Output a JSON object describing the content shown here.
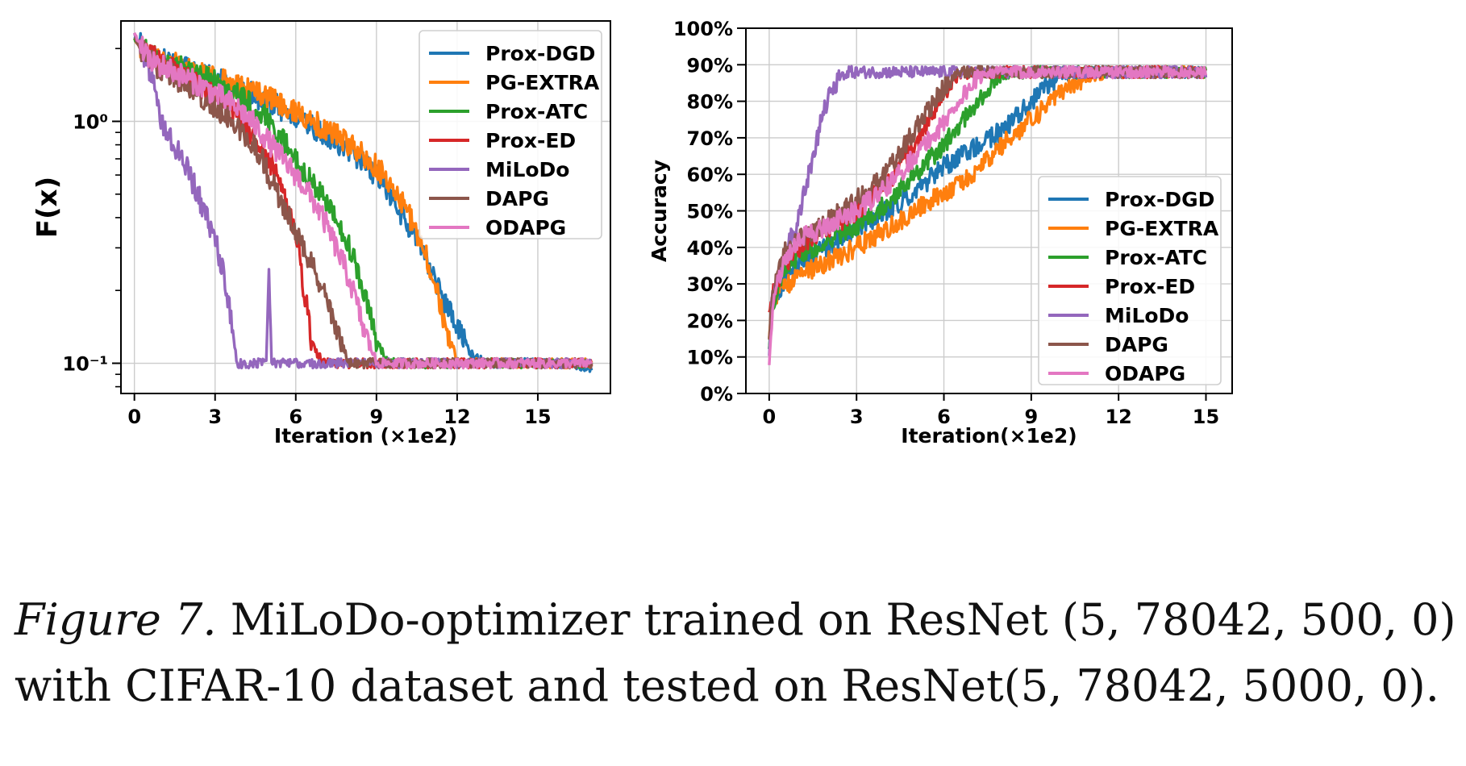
{
  "series_meta": [
    {
      "name": "Prox-DGD",
      "color": "#1f77b4"
    },
    {
      "name": "PG-EXTRA",
      "color": "#ff7f0e"
    },
    {
      "name": "Prox-ATC",
      "color": "#2ca02c"
    },
    {
      "name": "Prox-ED",
      "color": "#d62728"
    },
    {
      "name": "MiLoDo",
      "color": "#9467bd"
    },
    {
      "name": "DAPG",
      "color": "#8c564b"
    },
    {
      "name": "ODAPG",
      "color": "#e377c2"
    }
  ],
  "chart_data": [
    {
      "type": "line",
      "ylabel": "F(x)",
      "xlabel": "Iteration (×1e2)",
      "xlim": [
        -0.5,
        17.7
      ],
      "ylim": [
        0.075,
        2.6
      ],
      "yscale": "log",
      "xticks": [
        0,
        3,
        6,
        9,
        12,
        15
      ],
      "xtick_labels": [
        "0",
        "3",
        "6",
        "9",
        "12",
        "15"
      ],
      "yticks": [
        1,
        0.1
      ],
      "ytick_labels": [
        "10⁰",
        "10⁻¹"
      ],
      "grid": true,
      "legend": "top-right",
      "series": [
        {
          "name": "Prox-DGD",
          "x": [
            0,
            0.5,
            1,
            2,
            3,
            4,
            5,
            6,
            7,
            8,
            8.5,
            9,
            9.5,
            10,
            10.5,
            11,
            11.5,
            12,
            12.5,
            13,
            14,
            15,
            16,
            17
          ],
          "values": [
            2.2,
            1.9,
            1.8,
            1.65,
            1.5,
            1.35,
            1.2,
            1.05,
            0.9,
            0.75,
            0.68,
            0.6,
            0.5,
            0.4,
            0.32,
            0.25,
            0.18,
            0.14,
            0.11,
            0.1,
            0.1,
            0.1,
            0.1,
            0.095
          ]
        },
        {
          "name": "PG-EXTRA",
          "x": [
            0,
            0.5,
            1,
            2,
            3,
            4,
            5,
            6,
            7,
            8,
            9,
            9.5,
            10,
            10.5,
            11,
            11.5,
            12,
            13,
            14,
            15,
            16,
            17
          ],
          "values": [
            2.2,
            1.9,
            1.8,
            1.65,
            1.5,
            1.4,
            1.25,
            1.1,
            0.95,
            0.8,
            0.65,
            0.55,
            0.45,
            0.35,
            0.25,
            0.15,
            0.1,
            0.1,
            0.1,
            0.1,
            0.1,
            0.1
          ]
        },
        {
          "name": "Prox-ATC",
          "x": [
            0,
            0.5,
            1,
            2,
            3,
            4,
            5,
            5.5,
            6,
            6.5,
            7,
            7.5,
            8,
            8.5,
            9,
            9.5,
            10,
            12,
            14,
            16,
            17
          ],
          "values": [
            2.2,
            1.9,
            1.8,
            1.6,
            1.45,
            1.25,
            1.0,
            0.85,
            0.7,
            0.58,
            0.48,
            0.4,
            0.3,
            0.2,
            0.12,
            0.1,
            0.1,
            0.1,
            0.1,
            0.1,
            0.1
          ]
        },
        {
          "name": "Prox-ED",
          "x": [
            0,
            0.5,
            1,
            2,
            3,
            4,
            5,
            5.5,
            6,
            6.3,
            6.6,
            7,
            8,
            10,
            12,
            14,
            16,
            17
          ],
          "values": [
            2.2,
            1.9,
            1.75,
            1.5,
            1.25,
            1.0,
            0.7,
            0.5,
            0.35,
            0.2,
            0.12,
            0.1,
            0.1,
            0.1,
            0.1,
            0.1,
            0.1,
            0.1
          ]
        },
        {
          "name": "MiLoDo",
          "x": [
            0,
            0.5,
            1,
            1.5,
            2,
            2.5,
            3,
            3.5,
            3.8,
            4,
            4.5,
            4.9,
            5,
            5.1,
            5.5,
            6,
            8,
            10,
            12,
            14,
            16,
            17
          ],
          "values": [
            2.3,
            1.7,
            1.0,
            0.8,
            0.62,
            0.45,
            0.32,
            0.18,
            0.1,
            0.1,
            0.1,
            0.1,
            0.24,
            0.1,
            0.1,
            0.1,
            0.1,
            0.1,
            0.1,
            0.1,
            0.1,
            0.1
          ]
        },
        {
          "name": "DAPG",
          "x": [
            0,
            0.5,
            1,
            2,
            3,
            4,
            4.5,
            5,
            5.5,
            6,
            6.5,
            7,
            7.5,
            8,
            9,
            10,
            12,
            14,
            16,
            17
          ],
          "values": [
            2.2,
            1.8,
            1.65,
            1.4,
            1.15,
            0.9,
            0.78,
            0.6,
            0.45,
            0.35,
            0.27,
            0.2,
            0.14,
            0.1,
            0.1,
            0.1,
            0.1,
            0.1,
            0.1,
            0.1
          ]
        },
        {
          "name": "ODAPG",
          "x": [
            0,
            0.5,
            1,
            2,
            3,
            4,
            5,
            5.5,
            6,
            6.5,
            7,
            7.5,
            8,
            8.5,
            9,
            10,
            12,
            14,
            16,
            17
          ],
          "values": [
            2.3,
            1.85,
            1.7,
            1.5,
            1.3,
            1.1,
            0.82,
            0.7,
            0.6,
            0.5,
            0.4,
            0.3,
            0.22,
            0.14,
            0.1,
            0.1,
            0.1,
            0.1,
            0.1,
            0.1
          ]
        }
      ]
    },
    {
      "type": "line",
      "ylabel": "Accuracy",
      "xlabel": "Iteration(×1e2)",
      "xlim": [
        -0.8,
        15.9
      ],
      "ylim": [
        0,
        100
      ],
      "xticks": [
        0,
        3,
        6,
        9,
        12,
        15
      ],
      "xtick_labels": [
        "0",
        "3",
        "6",
        "9",
        "12",
        "15"
      ],
      "yticks": [
        0,
        10,
        20,
        30,
        40,
        50,
        60,
        70,
        80,
        90,
        100
      ],
      "ytick_labels": [
        "0%",
        "10%",
        "20%",
        "30%",
        "40%",
        "50%",
        "60%",
        "70%",
        "80%",
        "90%",
        "100%"
      ],
      "grid": true,
      "legend": "lower-right",
      "series": [
        {
          "name": "Prox-DGD",
          "x": [
            0,
            0.1,
            0.3,
            0.6,
            1,
            2,
            3,
            4,
            5,
            6,
            7,
            8,
            8.5,
            9,
            9.5,
            10,
            11,
            12,
            13,
            14,
            15
          ],
          "values": [
            12,
            22,
            28,
            32,
            36,
            40,
            45,
            50,
            55,
            62,
            67,
            72,
            76,
            80,
            84,
            87,
            88,
            88,
            88,
            88,
            88
          ]
        },
        {
          "name": "PG-EXTRA",
          "x": [
            0,
            0.1,
            0.3,
            0.6,
            1,
            2,
            3,
            4,
            5,
            6,
            7,
            8,
            9,
            10,
            10.5,
            11,
            12,
            13,
            14,
            15
          ],
          "values": [
            15,
            25,
            28,
            30,
            32,
            36,
            40,
            45,
            50,
            55,
            60,
            68,
            75,
            82,
            85,
            87,
            88,
            88,
            88,
            88
          ]
        },
        {
          "name": "Prox-ATC",
          "x": [
            0,
            0.1,
            0.3,
            0.6,
            1,
            2,
            3,
            4,
            5,
            6,
            6.5,
            7,
            7.5,
            8,
            9,
            10,
            12,
            14,
            15
          ],
          "values": [
            12,
            24,
            30,
            35,
            38,
            42,
            46,
            52,
            60,
            68,
            73,
            78,
            84,
            87,
            88,
            88,
            88,
            88,
            88
          ]
        },
        {
          "name": "Prox-ED",
          "x": [
            0,
            0.1,
            0.3,
            0.6,
            1,
            2,
            3,
            4,
            5,
            5.5,
            6,
            6.5,
            7,
            8,
            10,
            12,
            14,
            15
          ],
          "values": [
            22,
            26,
            31,
            36,
            40,
            45,
            50,
            57,
            68,
            75,
            82,
            87,
            88,
            88,
            88,
            88,
            88,
            88
          ]
        },
        {
          "name": "MiLoDo",
          "x": [
            0,
            0.1,
            0.3,
            0.6,
            0.9,
            1.2,
            1.5,
            1.8,
            2.1,
            2.4,
            2.7,
            3,
            4,
            6,
            8,
            10,
            12,
            14,
            15
          ],
          "values": [
            10,
            25,
            33,
            40,
            45,
            55,
            65,
            75,
            83,
            86,
            88,
            88,
            88,
            88,
            88,
            88,
            88,
            88,
            88
          ]
        },
        {
          "name": "DAPG",
          "x": [
            0,
            0.1,
            0.3,
            0.6,
            1,
            2,
            3,
            4,
            5,
            5.5,
            6,
            6.5,
            7,
            8,
            10,
            12,
            14,
            15
          ],
          "values": [
            15,
            25,
            33,
            40,
            42,
            47,
            53,
            60,
            72,
            78,
            84,
            88,
            88,
            88,
            88,
            88,
            88,
            88
          ]
        },
        {
          "name": "ODAPG",
          "x": [
            0,
            0.1,
            0.3,
            0.6,
            1,
            2,
            3,
            4,
            5,
            6,
            6.5,
            7,
            7.5,
            8,
            10,
            12,
            14,
            15
          ],
          "values": [
            8,
            22,
            30,
            38,
            42,
            46,
            50,
            56,
            65,
            74,
            80,
            85,
            88,
            88,
            88,
            88,
            88,
            88
          ]
        }
      ]
    }
  ],
  "caption": {
    "label": "Figure 7.",
    "line1": "MiLoDo-optimizer trained on ResNet (5, 78042, 500, 0)",
    "line2": "with CIFAR-10 dataset and tested on ResNet(5, 78042, 5000, 0)."
  }
}
